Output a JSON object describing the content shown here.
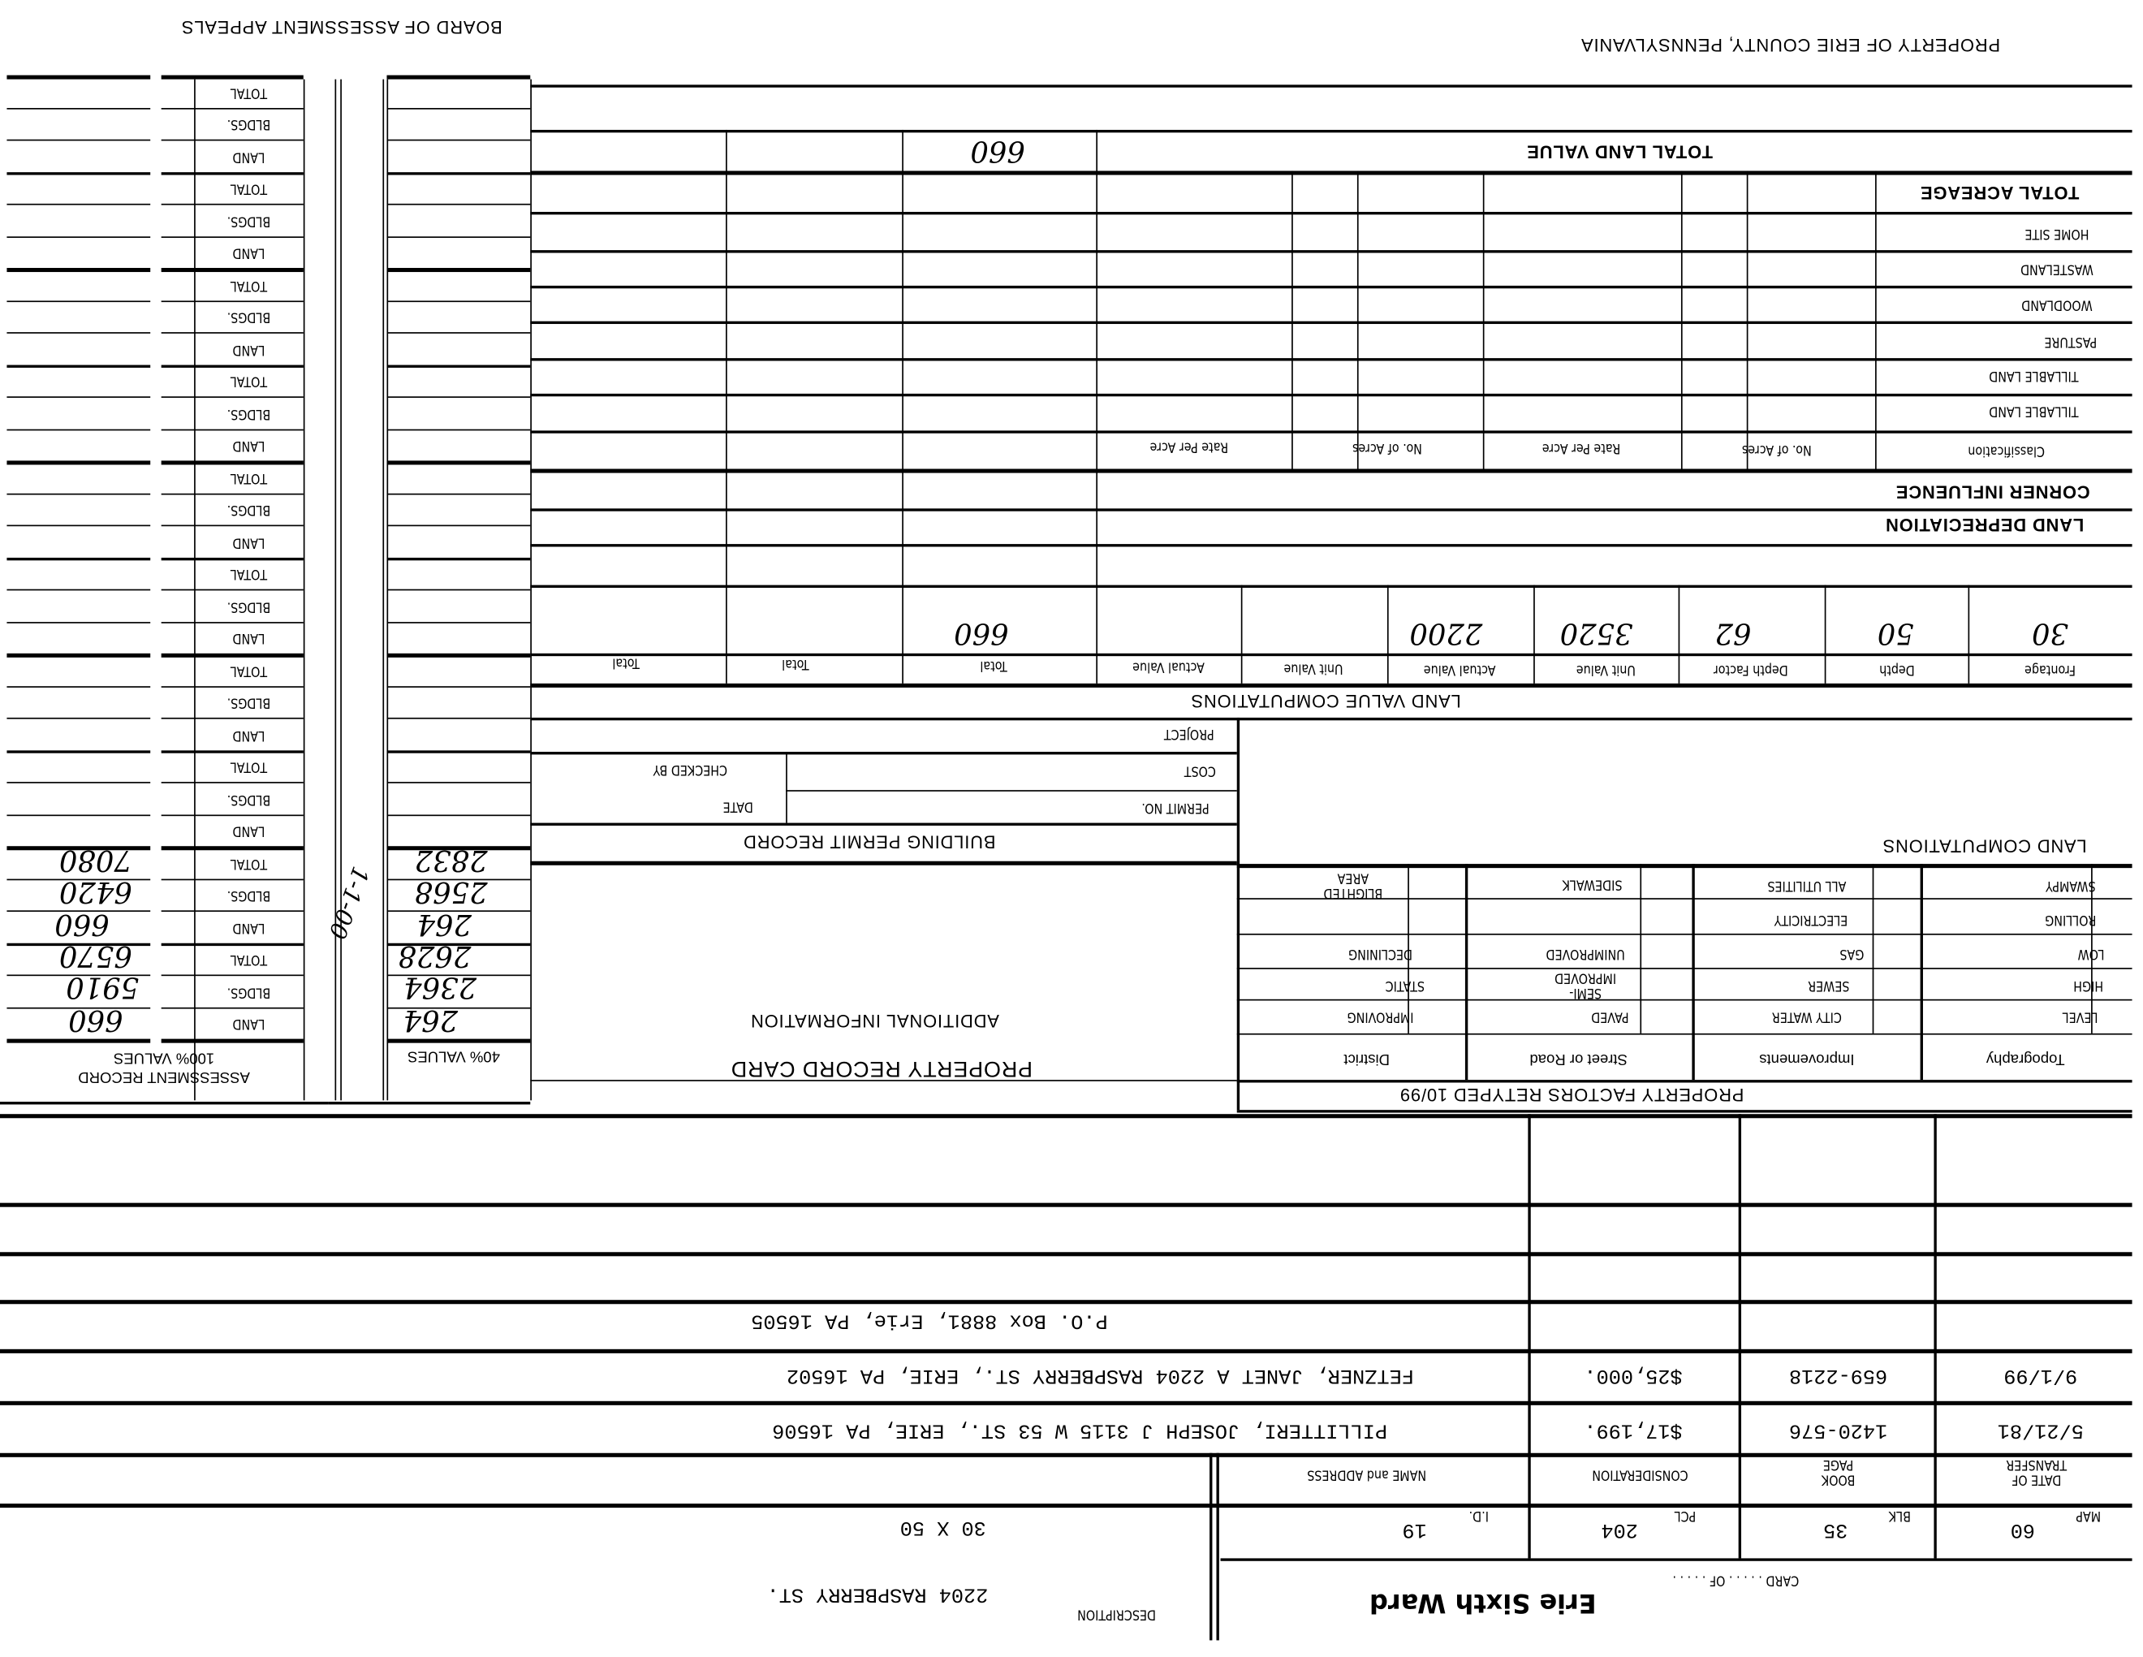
{
  "header": {
    "owner_line": "PROPERTY OF ERIE COUNTY, PENNSYLVANIA",
    "board": "BOARD OF ASSESSMENT APPEALS"
  },
  "card": {
    "title": "PROPERTY RECORD CARD",
    "ward": "Erie Sixth Ward",
    "card_label": "CARD . . . . . OF . . . . .",
    "map_label": "MAP",
    "map": "60",
    "blk_label": "BLK",
    "blk": "35",
    "pcl_label": "PCL",
    "pcl": "204",
    "id_label": "I.D.",
    "id": "19",
    "description_label": "DESCRIPTION",
    "description": "2204 RASPBERRY ST.",
    "dimensions": "30 X 50"
  },
  "transfers": {
    "headers": [
      "DATE OF TRANSFER",
      "BOOK PAGE",
      "CONSIDERATION",
      "NAME and ADDRESS"
    ],
    "rows": [
      {
        "date": "5/21/81",
        "book_page": "1420-576",
        "consideration": "$17,199.",
        "name_address": "PILLITTERI, JOSEPH J   3115 W 53 ST., ERIE, PA  16506"
      },
      {
        "date": "9/1/99",
        "book_page": "659-2218",
        "consideration": "$25,000.",
        "name_address": "FETZNER, JANET A   2204 RASPBERRY ST., ERIE, PA  16502"
      },
      {
        "date": "",
        "book_page": "",
        "consideration": "",
        "name_address": "P.O. Box 8881, Erie, PA 16505"
      }
    ]
  },
  "property_factors": {
    "title": "PROPERTY FACTORS RETYPED 10/99",
    "columns": [
      "Topography",
      "Improvements",
      "Street or Road",
      "District"
    ],
    "topography": [
      "LEVEL",
      "HIGH",
      "LOW",
      "ROLLING",
      "SWAMPY"
    ],
    "improvements": [
      "CITY WATER",
      "SEWER",
      "GAS",
      "ELECTRICITY",
      "ALL UTILITIES"
    ],
    "street": [
      "PAVED",
      "SEMI-IMPROVED",
      "UNIMPROVED",
      "",
      "SIDEWALK"
    ],
    "district": [
      "IMPROVING",
      "STATIC",
      "DECLINING",
      "",
      "BLIGHTED AREA"
    ]
  },
  "additional_information": "ADDITIONAL INFORMATION",
  "land_computations": "LAND COMPUTATIONS",
  "building_permit": {
    "title": "BUILDING PERMIT RECORD",
    "permit_no": "PERMIT NO.",
    "date": "DATE",
    "cost": "COST",
    "checked_by": "CHECKED BY",
    "project": "PROJECT"
  },
  "land_value": {
    "title": "LAND VALUE COMPUTATIONS",
    "headers": [
      "Frontage",
      "Depth",
      "Depth Factor",
      "Unit Value",
      "Actual Value",
      "Unit Value",
      "Actual Value",
      "Total",
      "Total",
      "Total"
    ],
    "values": [
      "30",
      "50",
      "62",
      "3520",
      "2200",
      "",
      "",
      "660",
      "",
      ""
    ]
  },
  "land_adjustments": {
    "depreciation": "LAND DEPRECIATION",
    "corner": "CORNER INFLUENCE"
  },
  "acreage": {
    "headers": [
      "Classification",
      "No. of Acres",
      "Rate Per Acre",
      "No. of Acres",
      "Rate Per Acre"
    ],
    "rows": [
      "TILLABLE LAND",
      "TILLABLE LAND",
      "PASTURE",
      "WOODLAND",
      "WASTELAND",
      "HOME SITE"
    ],
    "total_acreage": "TOTAL ACREAGE",
    "total_land_value": "TOTAL LAND VALUE",
    "total_land_value_amount": "660"
  },
  "assessment": {
    "title": "ASSESSMENT RECORD",
    "col_100": "100% VALUES",
    "col_40": "40% VALUES",
    "row_labels": [
      "LAND",
      "BLDGS.",
      "TOTAL"
    ],
    "records": [
      {
        "land_100": "660",
        "bldgs_100": "5910",
        "total_100": "6570",
        "land_40": "264",
        "bldgs_40": "2364",
        "total_40": "2628"
      },
      {
        "land_100": "660",
        "bldgs_100": "6420",
        "total_100": "7080",
        "land_40": "264",
        "bldgs_40": "2568",
        "total_40": "2832",
        "note": "1-1-00"
      }
    ]
  }
}
